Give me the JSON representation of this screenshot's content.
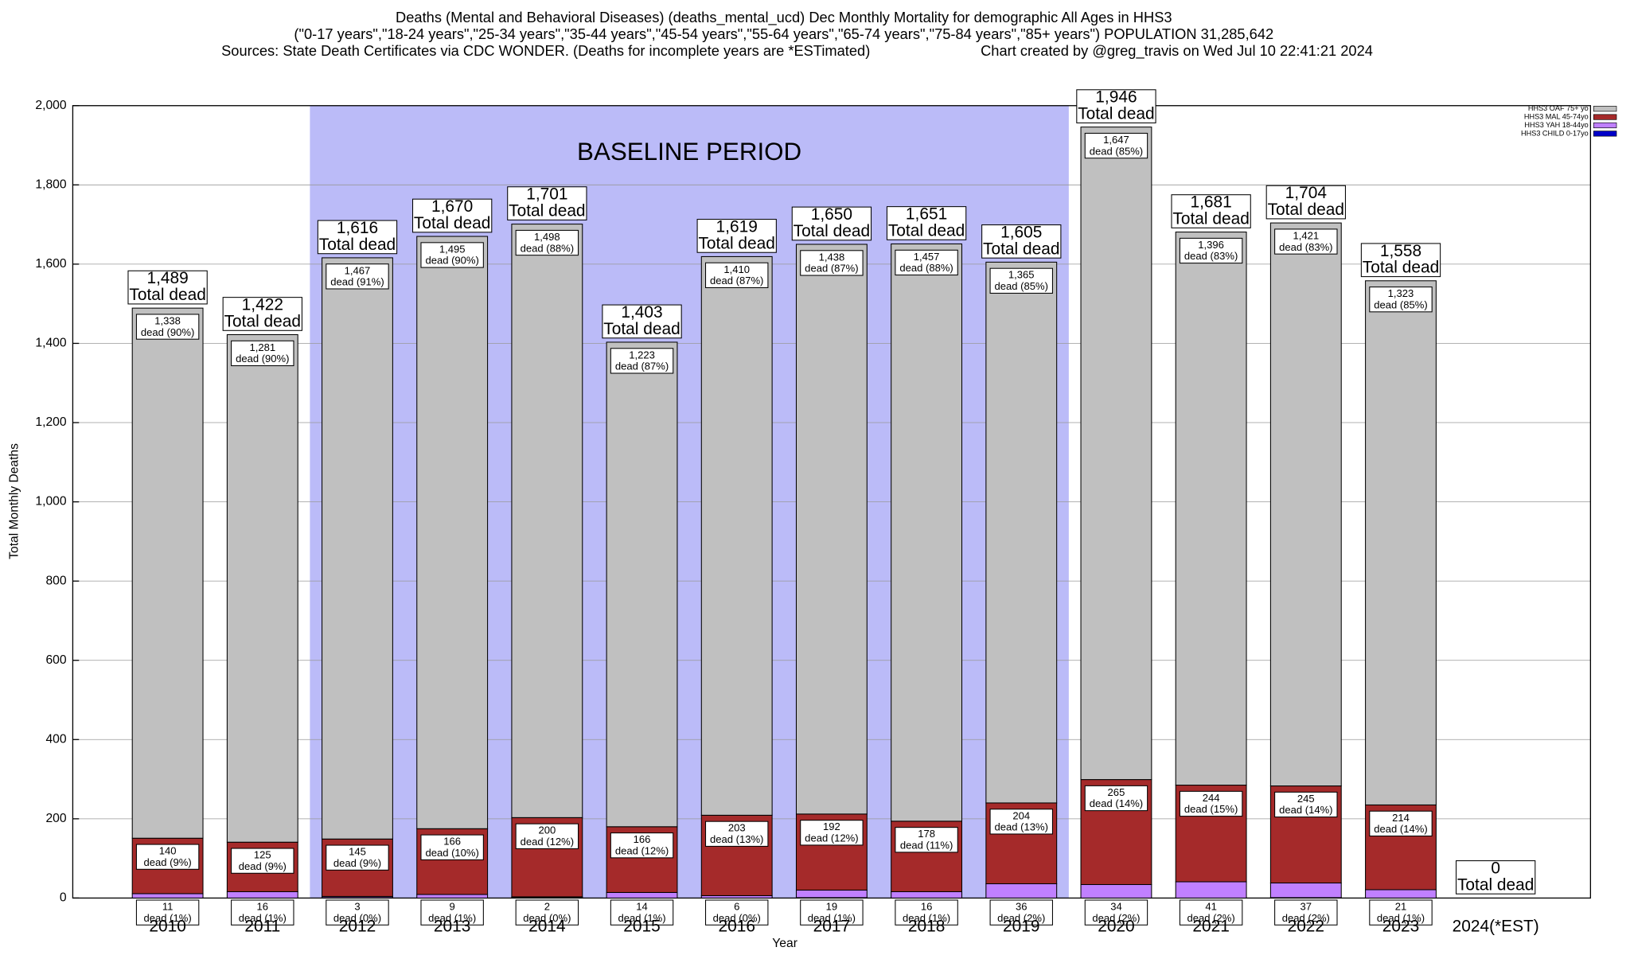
{
  "chart_data": {
    "type": "stacked_bar",
    "title": "Deaths (Mental and Behavioral Diseases) (deaths_mental_ucd) Dec Monthly Mortality for demographic All Ages in HHS3",
    "subtitle": "(\"0-17 years\",\"18-24 years\",\"25-34 years\",\"35-44 years\",\"45-54 years\",\"55-64 years\",\"65-74 years\",\"75-84 years\",\"85+ years\") POPULATION 31,285,642",
    "sources": "Sources: State Death Certificates via CDC WONDER. (Deaths for incomplete years are *ESTimated)",
    "credit": "Chart created by @greg_travis on Wed Jul 10 22:41:21 2024",
    "x_label": "Year",
    "y_label": "Total Monthly Deaths",
    "categories": [
      "2010",
      "2011",
      "2012",
      "2013",
      "2014",
      "2015",
      "2016",
      "2017",
      "2018",
      "2019",
      "2020",
      "2021",
      "2022",
      "2023",
      "2024(*EST)"
    ],
    "series": [
      {
        "name": "HHS3 CHILD 0-17yo",
        "color": "#0000c8",
        "values": [
          0,
          0,
          1,
          0,
          1,
          0,
          0,
          1,
          0,
          0,
          0,
          0,
          1,
          0,
          0
        ]
      },
      {
        "name": "HHS3 YAH 18-44yo",
        "color": "#c080ff",
        "label_pos": "below",
        "values": [
          11,
          16,
          3,
          9,
          2,
          14,
          6,
          19,
          16,
          36,
          34,
          41,
          37,
          21,
          0
        ],
        "share_labels": [
          "dead (1%)",
          "dead (1%)",
          "dead (0%)",
          "dead (1%)",
          "dead (0%)",
          "dead (1%)",
          "dead (0%)",
          "dead (1%)",
          "dead (1%)",
          "dead (2%)",
          "dead (2%)",
          "dead (2%)",
          "dead (2%)",
          "dead (1%)",
          null
        ]
      },
      {
        "name": "HHS3 MAL 45-74yo",
        "color": "#a52a2a",
        "label_pos": "top",
        "values": [
          140,
          125,
          145,
          166,
          200,
          166,
          203,
          192,
          178,
          204,
          265,
          244,
          245,
          214,
          0
        ],
        "share_labels": [
          "dead (9%)",
          "dead (9%)",
          "dead (9%)",
          "dead (10%)",
          "dead (12%)",
          "dead (12%)",
          "dead (13%)",
          "dead (12%)",
          "dead (11%)",
          "dead (13%)",
          "dead (14%)",
          "dead (15%)",
          "dead (14%)",
          "dead (14%)",
          null
        ]
      },
      {
        "name": "HHS3 OAF 75+ yo",
        "color": "#c0c0c0",
        "label_pos": "top",
        "values": [
          1338,
          1281,
          1467,
          1495,
          1498,
          1223,
          1410,
          1438,
          1457,
          1365,
          1647,
          1396,
          1421,
          1323,
          0
        ],
        "value_labels": [
          "1,338",
          "1,281",
          "1,467",
          "1,495",
          "1,498",
          "1,223",
          "1,410",
          "1,438",
          "1,457",
          "1,365",
          "1,647",
          "1,396",
          "1,421",
          "1,323",
          null
        ],
        "share_labels": [
          "dead (90%)",
          "dead (90%)",
          "dead (91%)",
          "dead (90%)",
          "dead (88%)",
          "dead (87%)",
          "dead (87%)",
          "dead (87%)",
          "dead (88%)",
          "dead (85%)",
          "dead (85%)",
          "dead (83%)",
          "dead (83%)",
          "dead (85%)",
          null
        ]
      }
    ],
    "totals": {
      "caption": "Total dead",
      "values": [
        1489,
        1422,
        1616,
        1670,
        1701,
        1403,
        1619,
        1650,
        1651,
        1605,
        1946,
        1681,
        1704,
        1558,
        0
      ],
      "value_labels": [
        "1,489",
        "1,422",
        "1,616",
        "1,670",
        "1,701",
        "1,403",
        "1,619",
        "1,650",
        "1,651",
        "1,605",
        "1,946",
        "1,681",
        "1,704",
        "1,558",
        "0"
      ]
    },
    "baseline": {
      "label": "BASELINE PERIOD",
      "from": "2012",
      "to": "2019",
      "color": "#bbbbf8"
    },
    "ylim": [
      0,
      2000
    ],
    "yticks": [
      0,
      200,
      400,
      600,
      800,
      {
        "value": 1000,
        "label": "1,000"
      },
      {
        "value": 1200,
        "label": "1,200"
      },
      {
        "value": 1400,
        "label": "1,400"
      },
      {
        "value": 1600,
        "label": "1,600"
      },
      {
        "value": 1800,
        "label": "1,800"
      },
      {
        "value": 2000,
        "label": "2,000"
      }
    ],
    "grid": true,
    "legend": "top-right"
  }
}
